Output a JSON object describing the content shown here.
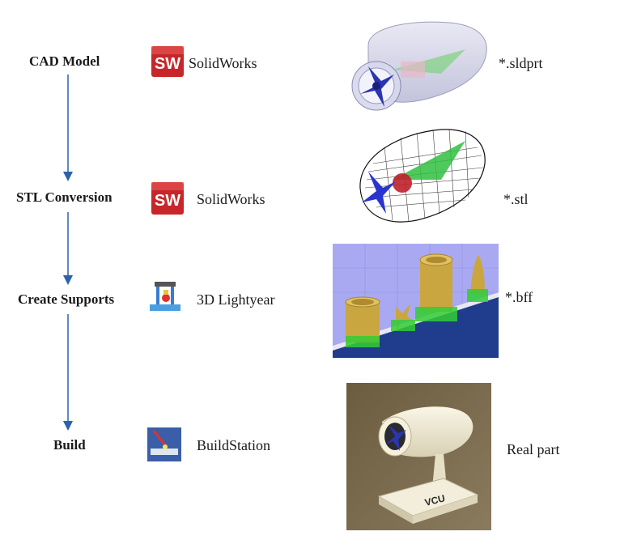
{
  "steps": [
    {
      "label": "CAD Model",
      "software": "SolidWorks",
      "file": "*.sldprt",
      "icon": "solidworks-icon"
    },
    {
      "label": "STL Conversion",
      "software": "SolidWorks",
      "file": "*.stl",
      "icon": "solidworks-icon"
    },
    {
      "label": "Create Supports",
      "software": "3D Lightyear",
      "file": "*.bff",
      "icon": "lightyear-icon"
    },
    {
      "label": "Build",
      "software": "BuildStation",
      "file": "Real part",
      "icon": "buildstation-icon"
    }
  ],
  "icon_text": {
    "solidworks": "SW"
  },
  "photo_text": {
    "engraving": "VCU"
  },
  "colors": {
    "arrow": "#2a63a8",
    "solidworks_red": "#c8262a",
    "build_bg": "#3a5fd0",
    "build_floor": "#1f3d8c",
    "part_yellow": "#c9a640",
    "support_green": "#33cc33"
  }
}
